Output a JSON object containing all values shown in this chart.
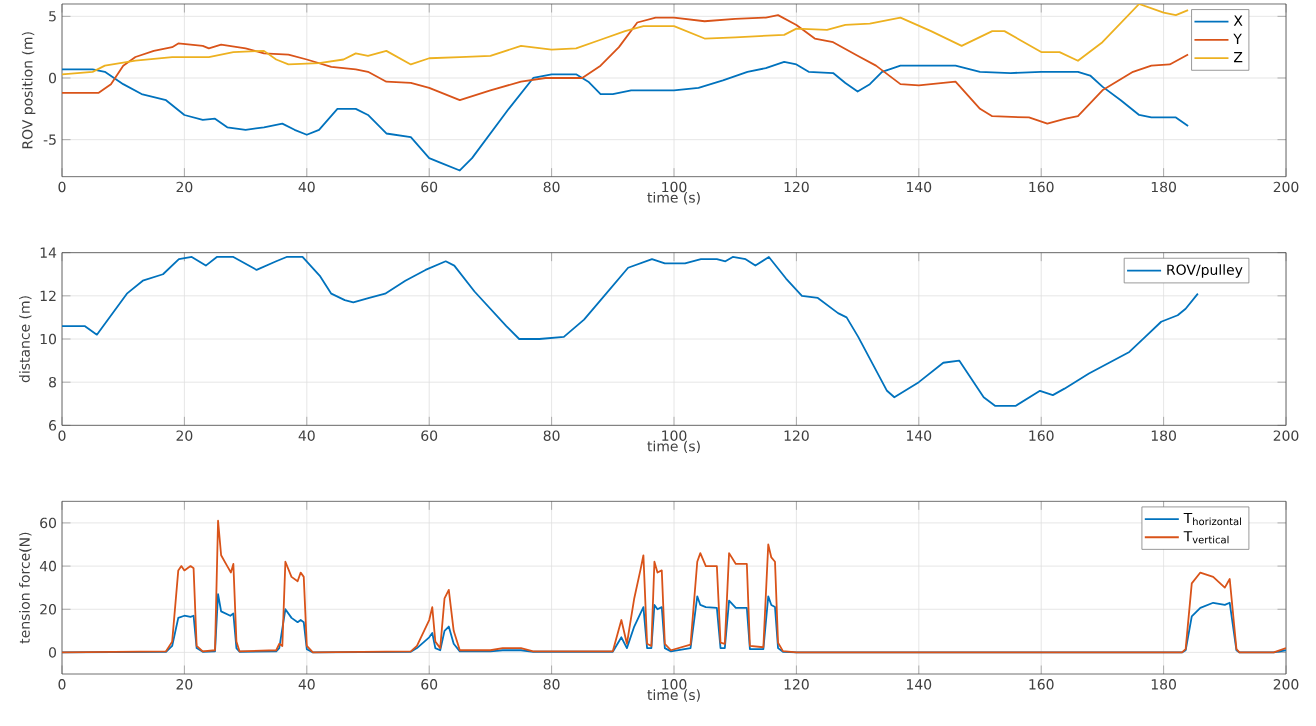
{
  "chart_data": [
    {
      "type": "line",
      "xlabel": "time (s)",
      "ylabel": "ROV position (m)",
      "xlim": [
        0,
        200
      ],
      "ylim": [
        -8,
        6
      ],
      "xticks": [
        0,
        20,
        40,
        60,
        80,
        100,
        120,
        140,
        160,
        180,
        200
      ],
      "yticks": [
        -5,
        0,
        5
      ],
      "grid": true,
      "legend": "top right",
      "series": [
        {
          "name": "X",
          "color": "#0072bd",
          "x": [
            0,
            5,
            7,
            10,
            13,
            17,
            20,
            23,
            25,
            27,
            30,
            33,
            36,
            38,
            40,
            42,
            45,
            48,
            50,
            53,
            57,
            60,
            62,
            65,
            67,
            70,
            73,
            77,
            80,
            84,
            86,
            88,
            90,
            93,
            97,
            100,
            104,
            108,
            112,
            115,
            118,
            120,
            122,
            126,
            128,
            130,
            132,
            134,
            137,
            146,
            150,
            155,
            160,
            166,
            168,
            170,
            173,
            176,
            178,
            182,
            184
          ],
          "values": [
            0.7,
            0.7,
            0.5,
            -0.5,
            -1.3,
            -1.8,
            -3,
            -3.4,
            -3.3,
            -4,
            -4.2,
            -4,
            -3.7,
            -4.2,
            -4.6,
            -4.2,
            -2.5,
            -2.5,
            -3,
            -4.5,
            -4.8,
            -6.5,
            -6.9,
            -7.5,
            -6.5,
            -4.5,
            -2.5,
            0,
            0.3,
            0.3,
            -0.3,
            -1.3,
            -1.3,
            -1,
            -1,
            -1,
            -0.8,
            -0.2,
            0.5,
            0.8,
            1.3,
            1.1,
            0.5,
            0.4,
            -0.4,
            -1.1,
            -0.5,
            0.5,
            1,
            1,
            0.5,
            0.4,
            0.5,
            0.5,
            0.2,
            -0.7,
            -1.8,
            -3,
            -3.2,
            -3.2,
            -3.9
          ]
        },
        {
          "name": "Y",
          "color": "#d95319",
          "x": [
            0,
            6,
            8,
            10,
            12,
            15,
            18,
            19,
            23,
            24,
            26,
            30,
            33,
            37,
            40,
            44,
            48,
            50,
            53,
            57,
            60,
            65,
            70,
            75,
            79,
            85,
            88,
            91,
            94,
            97,
            100,
            105,
            110,
            115,
            117,
            120,
            123,
            126,
            130,
            133,
            137,
            140,
            146,
            150,
            152,
            158,
            161,
            164,
            166,
            170,
            175,
            178,
            181,
            184
          ],
          "values": [
            -1.2,
            -1.2,
            -0.5,
            1,
            1.7,
            2.2,
            2.5,
            2.8,
            2.6,
            2.4,
            2.7,
            2.4,
            2,
            1.9,
            1.5,
            0.9,
            0.7,
            0.5,
            -0.3,
            -0.4,
            -0.8,
            -1.8,
            -1,
            -0.3,
            0,
            0,
            1,
            2.5,
            4.5,
            4.9,
            4.9,
            4.6,
            4.8,
            4.9,
            5.1,
            4.3,
            3.2,
            2.9,
            1.8,
            1,
            -0.5,
            -0.6,
            -0.3,
            -2.5,
            -3.1,
            -3.2,
            -3.7,
            -3.3,
            -3.1,
            -1,
            0.5,
            1,
            1.1,
            1.9
          ]
        },
        {
          "name": "Z",
          "color": "#edb120",
          "x": [
            0,
            5,
            7,
            12,
            18,
            24,
            28,
            33,
            35,
            37,
            42,
            46,
            48,
            50,
            53,
            57,
            60,
            65,
            70,
            75,
            80,
            84,
            88,
            92,
            95,
            100,
            105,
            110,
            118,
            120,
            125,
            128,
            132,
            137,
            142,
            147,
            152,
            154,
            160,
            163,
            166,
            170,
            176,
            180,
            182,
            184
          ],
          "values": [
            0.3,
            0.5,
            1,
            1.4,
            1.7,
            1.7,
            2.1,
            2.2,
            1.5,
            1.1,
            1.2,
            1.5,
            2,
            1.8,
            2.2,
            1.1,
            1.6,
            1.7,
            1.8,
            2.6,
            2.3,
            2.4,
            3.1,
            3.8,
            4.2,
            4.2,
            3.2,
            3.3,
            3.5,
            4,
            3.9,
            4.3,
            4.4,
            4.9,
            3.8,
            2.6,
            3.8,
            3.8,
            2.1,
            2.1,
            1.4,
            2.9,
            6,
            5.3,
            5.1,
            5.5
          ]
        }
      ]
    },
    {
      "type": "line",
      "xlabel": "time (s)",
      "ylabel": "distance (m)",
      "xlim": [
        0,
        200
      ],
      "ylim": [
        6,
        14
      ],
      "xticks": [
        0,
        20,
        40,
        60,
        80,
        100,
        120,
        140,
        160,
        180,
        200
      ],
      "yticks": [
        6,
        8,
        10,
        12,
        14
      ],
      "grid": true,
      "legend": "top right",
      "series": [
        {
          "name": "ROV/pulley",
          "color": "#0072bd",
          "x": [
            0,
            3.7,
            5.7,
            10.6,
            13.2,
            16.5,
            19.1,
            21.2,
            23.5,
            25.3,
            28,
            31.8,
            35,
            36.7,
            39.3,
            42.2,
            44,
            46.2,
            47.6,
            50.2,
            52.8,
            56.1,
            59.4,
            62.7,
            64.1,
            67.4,
            70,
            72.6,
            74.7,
            78,
            82,
            85.3,
            88.6,
            92.5,
            96.4,
            98.5,
            101.8,
            104.4,
            107,
            108.4,
            109.6,
            111.7,
            113.3,
            115.5,
            118.3,
            120.9,
            123.5,
            126.8,
            128.2,
            130.1,
            134.8,
            136,
            140,
            144,
            146.6,
            150.6,
            152.5,
            155.8,
            159.8,
            161.9,
            163.8,
            167.8,
            171.1,
            174.4,
            177,
            179.6,
            182.3,
            183.6,
            185.6
          ],
          "values": [
            10.6,
            10.6,
            10.2,
            12.1,
            12.7,
            13,
            13.7,
            13.8,
            13.4,
            13.8,
            13.8,
            13.2,
            13.6,
            13.8,
            13.8,
            12.9,
            12.1,
            11.8,
            11.7,
            11.9,
            12.1,
            12.7,
            13.2,
            13.6,
            13.4,
            12.2,
            11.4,
            10.6,
            10,
            10,
            10.1,
            10.9,
            12,
            13.3,
            13.7,
            13.5,
            13.5,
            13.7,
            13.7,
            13.6,
            13.8,
            13.7,
            13.4,
            13.8,
            12.8,
            12,
            11.9,
            11.2,
            11,
            10.1,
            7.6,
            7.3,
            8,
            8.9,
            9,
            7.3,
            6.9,
            6.9,
            7.6,
            7.4,
            7.7,
            8.4,
            8.9,
            9.4,
            10.1,
            10.8,
            11.1,
            11.4,
            12.1
          ]
        }
      ]
    },
    {
      "type": "line",
      "xlabel": "time (s)",
      "ylabel": "tension force(N)",
      "xlim": [
        0,
        200
      ],
      "ylim": [
        -10,
        70
      ],
      "xticks": [
        0,
        20,
        40,
        60,
        80,
        100,
        120,
        140,
        160,
        180,
        200
      ],
      "yticks": [
        0,
        20,
        40,
        60
      ],
      "grid": true,
      "legend": "top right",
      "series": [
        {
          "name": "\\mathrm{T}_{\\mathrm{horizontal}}",
          "color": "#0072bd",
          "x": [
            0,
            17,
            18,
            19,
            20,
            21,
            21.5,
            22,
            23,
            25,
            25.5,
            26,
            27.5,
            28,
            28.5,
            29,
            35,
            35.5,
            36.5,
            37.5,
            38.5,
            39,
            39.5,
            40,
            41,
            57,
            58,
            60,
            60.5,
            61,
            61.8,
            62.5,
            63.2,
            64,
            65,
            70,
            72,
            75,
            77,
            90,
            91.4,
            92.3,
            93.5,
            94.5,
            95,
            95.6,
            96.3,
            96.8,
            97.3,
            98,
            98.5,
            99.5,
            102.7,
            103.8,
            104.3,
            105.2,
            107,
            107.6,
            108.3,
            109,
            110.1,
            111.9,
            112.4,
            114.6,
            115.4,
            115.9,
            116.5,
            117,
            117.8,
            120,
            183,
            183.6,
            184.6,
            186,
            188.1,
            190,
            190.8,
            191.9,
            192.4,
            198,
            200
          ],
          "values": [
            0,
            0.3,
            3,
            16,
            17,
            16.5,
            17,
            2,
            0.3,
            0.5,
            27,
            19,
            17,
            18,
            2,
            0.3,
            0.5,
            2,
            20,
            16,
            14,
            15,
            14,
            1.5,
            0,
            0.3,
            2,
            7,
            9,
            2,
            1,
            10,
            12,
            4,
            0.5,
            0.5,
            1,
            1,
            0.3,
            0.3,
            7,
            2,
            12,
            18,
            21,
            2,
            2,
            22,
            20,
            21,
            2,
            0.5,
            2,
            26,
            22,
            21,
            20.6,
            2,
            2,
            24,
            20.6,
            20.6,
            1.5,
            1.5,
            26,
            22,
            21,
            2,
            0.3,
            0,
            0,
            1,
            16.7,
            20.6,
            23,
            22,
            23,
            1,
            0,
            0,
            1
          ]
        },
        {
          "name": "\\mathrm{T}_{\\mathrm{vertical}}",
          "color": "#d95319",
          "x": [
            0,
            17,
            18,
            19,
            19.5,
            20,
            21,
            21.5,
            22,
            23,
            25,
            25.5,
            26,
            27,
            27.6,
            28,
            28.5,
            29,
            35,
            35.5,
            36,
            36.5,
            37.5,
            38.5,
            39,
            39.5,
            40,
            41,
            57,
            58,
            60,
            60.5,
            61,
            61.8,
            62.5,
            63.2,
            64,
            65,
            70,
            72,
            75,
            77,
            90,
            91.4,
            92.3,
            93.5,
            94.5,
            95,
            95.6,
            96.3,
            96.8,
            97.3,
            98,
            98.5,
            99.5,
            102.7,
            103.8,
            104.3,
            105.2,
            107,
            107.6,
            108.3,
            109,
            110.1,
            111.9,
            112.4,
            114.6,
            115.4,
            115.9,
            116.5,
            117,
            117.8,
            120,
            183,
            183.6,
            184.6,
            186,
            188.1,
            190,
            190.8,
            191.9,
            192.4,
            198,
            200
          ],
          "values": [
            0,
            0.5,
            5,
            38,
            40,
            38,
            40,
            39,
            3,
            0.5,
            1,
            61,
            45,
            40,
            37,
            41,
            5,
            0.5,
            1,
            4,
            3,
            42,
            35,
            33,
            37,
            35,
            3,
            0,
            0.5,
            3,
            15,
            21,
            5,
            2,
            25,
            29,
            10,
            1,
            1,
            2,
            2,
            0.5,
            0.5,
            15,
            4,
            25,
            38,
            45,
            4,
            3,
            42,
            37,
            38,
            4,
            1,
            3.6,
            42,
            46,
            40,
            40,
            4.5,
            4,
            46,
            41,
            41,
            3,
            2.4,
            50,
            44,
            42,
            4.5,
            0.6,
            0,
            0,
            1.5,
            32,
            37,
            35,
            30,
            34,
            1.5,
            0,
            0,
            2
          ]
        }
      ]
    }
  ]
}
